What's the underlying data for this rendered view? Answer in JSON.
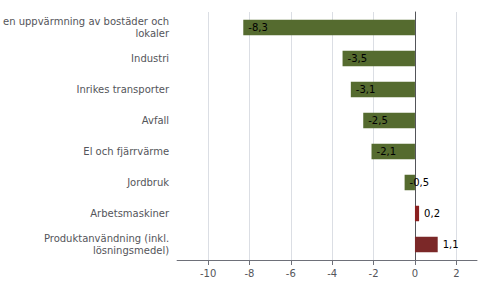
{
  "chart_data": {
    "type": "bar",
    "orientation": "horizontal",
    "categories": [
      "Produktanvändning (inkl.\nlösningsmedel)",
      "Arbetsmaskiner",
      "Jordbruk",
      "El och fjärrvärme",
      "Avfall",
      "Inrikes transporter",
      "Industri",
      "en uppvärmning av bostäder och\nlokaler"
    ],
    "values": [
      1.1,
      0.2,
      -0.5,
      -2.1,
      -2.5,
      -3.1,
      -3.5,
      -8.3
    ],
    "value_labels": [
      "1,1",
      "0,2",
      "-0,5",
      "-2,1",
      "-2,5",
      "-3,1",
      "-3,5",
      "-8,3"
    ],
    "colors": [
      "#7b2828",
      "#8b2020",
      "#556b2f",
      "#556b2f",
      "#556b2f",
      "#556b2f",
      "#556b2f",
      "#556b2f"
    ],
    "xlim": [
      -11.5,
      3.0
    ],
    "xticks": [
      -10,
      -8,
      -6,
      -4,
      -2,
      0,
      2
    ],
    "grid": true,
    "data_labels": true
  }
}
